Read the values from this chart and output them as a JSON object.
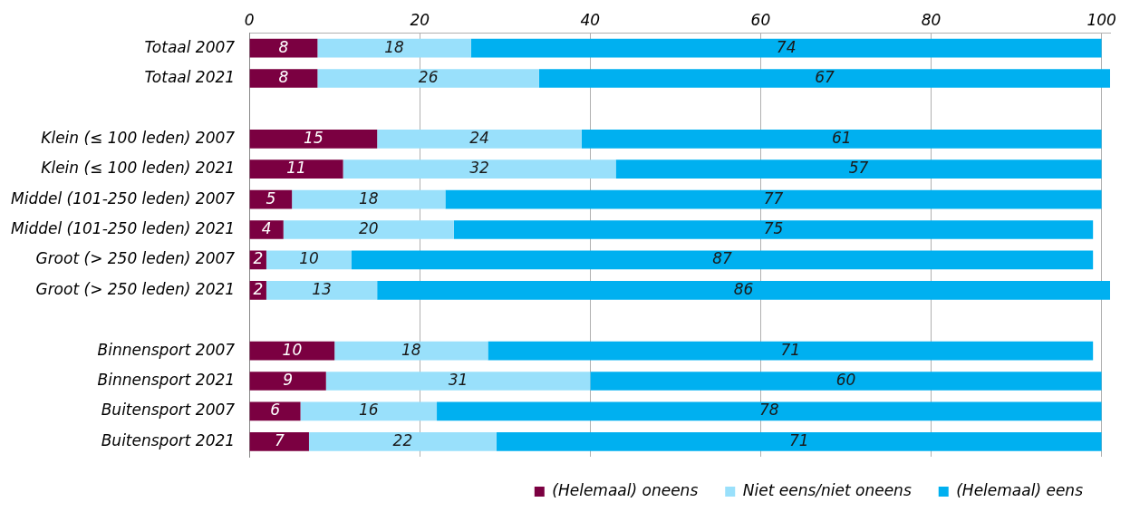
{
  "chart_data": {
    "type": "bar",
    "orientation": "horizontal",
    "stacked": true,
    "data_labels": true,
    "grid": "x",
    "legend": "bottom right",
    "categories": [
      "Totaal 2007",
      "Totaal 2021",
      null,
      "Klein (≤ 100 leden) 2007",
      "Klein (≤ 100 leden) 2021",
      "Middel (101-250 leden) 2007",
      "Middel (101-250 leden) 2021",
      "Groot (> 250 leden) 2007",
      "Groot (> 250 leden) 2021",
      null,
      "Binnensport 2007",
      "Binnensport 2021",
      "Buitensport 2007",
      "Buitensport 2021"
    ],
    "series": [
      {
        "name": "(Helemaal) oneens",
        "color": "#7b0041",
        "values": [
          8,
          8,
          null,
          15,
          11,
          5,
          4,
          2,
          2,
          null,
          10,
          9,
          6,
          7
        ]
      },
      {
        "name": "Niet eens/niet oneens",
        "color": "#99e0fb",
        "values": [
          18,
          26,
          null,
          24,
          32,
          18,
          20,
          10,
          13,
          null,
          18,
          31,
          16,
          22
        ]
      },
      {
        "name": "(Helemaal) eens",
        "color": "#00b0f0",
        "values": [
          74,
          67,
          null,
          61,
          57,
          77,
          75,
          87,
          86,
          null,
          71,
          60,
          78,
          71
        ]
      }
    ],
    "xlim": [
      0,
      101
    ],
    "xticks": [
      0,
      20,
      40,
      60,
      80,
      100
    ]
  }
}
